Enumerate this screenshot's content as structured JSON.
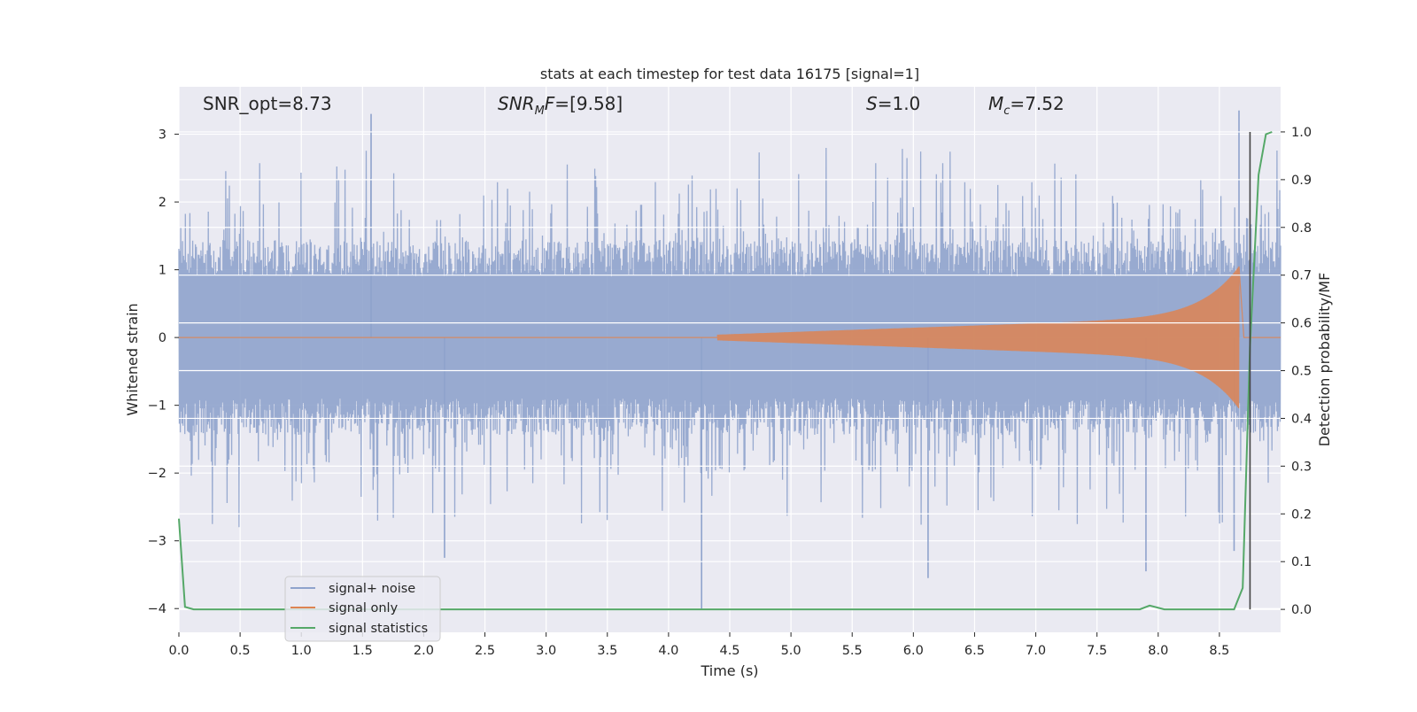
{
  "chart_data": {
    "type": "line",
    "title": "stats at each timestep for test data 16175 [signal=1]",
    "xlabel": "Time (s)",
    "ylabel_left": "Whitened strain",
    "ylabel_right": "Detection probability/MF",
    "xlim": [
      0.0,
      9.0
    ],
    "ylim_left": [
      -4.35,
      3.7
    ],
    "ylim_right": [
      -0.048,
      1.0945
    ],
    "x_ticks": [
      "0.0",
      "0.5",
      "1.0",
      "1.5",
      "2.0",
      "2.5",
      "3.0",
      "3.5",
      "4.0",
      "4.5",
      "5.0",
      "5.5",
      "6.0",
      "6.5",
      "7.0",
      "7.5",
      "8.0",
      "8.5"
    ],
    "y_left_ticks": [
      "3",
      "2",
      "1",
      "0",
      "−1",
      "−2",
      "−3",
      "−4"
    ],
    "y_right_ticks": [
      "1.0",
      "0.9",
      "0.8",
      "0.7",
      "0.6",
      "0.5",
      "0.4",
      "0.3",
      "0.2",
      "0.1",
      "0.0"
    ],
    "grid": true,
    "legend_position": "lower-left",
    "annotations": {
      "snr_opt": "SNR_opt=8.73",
      "snr_mf": "[9.58]",
      "s_value": "1.0",
      "mc_value": "7.52"
    },
    "merger_marker_x": 8.75,
    "series": [
      {
        "name": "signal+ noise",
        "axis": "left",
        "color": "#8fa3cc",
        "kind": "noise",
        "envelope": 1.2,
        "notable_peaks": [
          [
            1.57,
            3.3
          ],
          [
            8.66,
            3.35
          ],
          [
            4.27,
            -4.0
          ],
          [
            6.12,
            -3.55
          ],
          [
            2.17,
            -3.25
          ],
          [
            7.9,
            -3.45
          ],
          [
            8.62,
            -3.15
          ]
        ]
      },
      {
        "name": "signal only",
        "axis": "left",
        "color": "#dd8452",
        "kind": "chirp",
        "start": 4.4,
        "peak_time": 8.66,
        "peak_amplitude": 1.05
      },
      {
        "name": "signal statistics",
        "axis": "right",
        "color": "#55a868",
        "x": [
          0.0,
          0.05,
          0.12,
          7.85,
          7.93,
          8.05,
          8.62,
          8.69,
          8.75,
          8.82,
          8.88,
          8.93
        ],
        "values": [
          0.19,
          0.005,
          0.0,
          0.0,
          0.008,
          0.0,
          0.0,
          0.045,
          0.55,
          0.91,
          0.995,
          1.0
        ]
      }
    ]
  }
}
